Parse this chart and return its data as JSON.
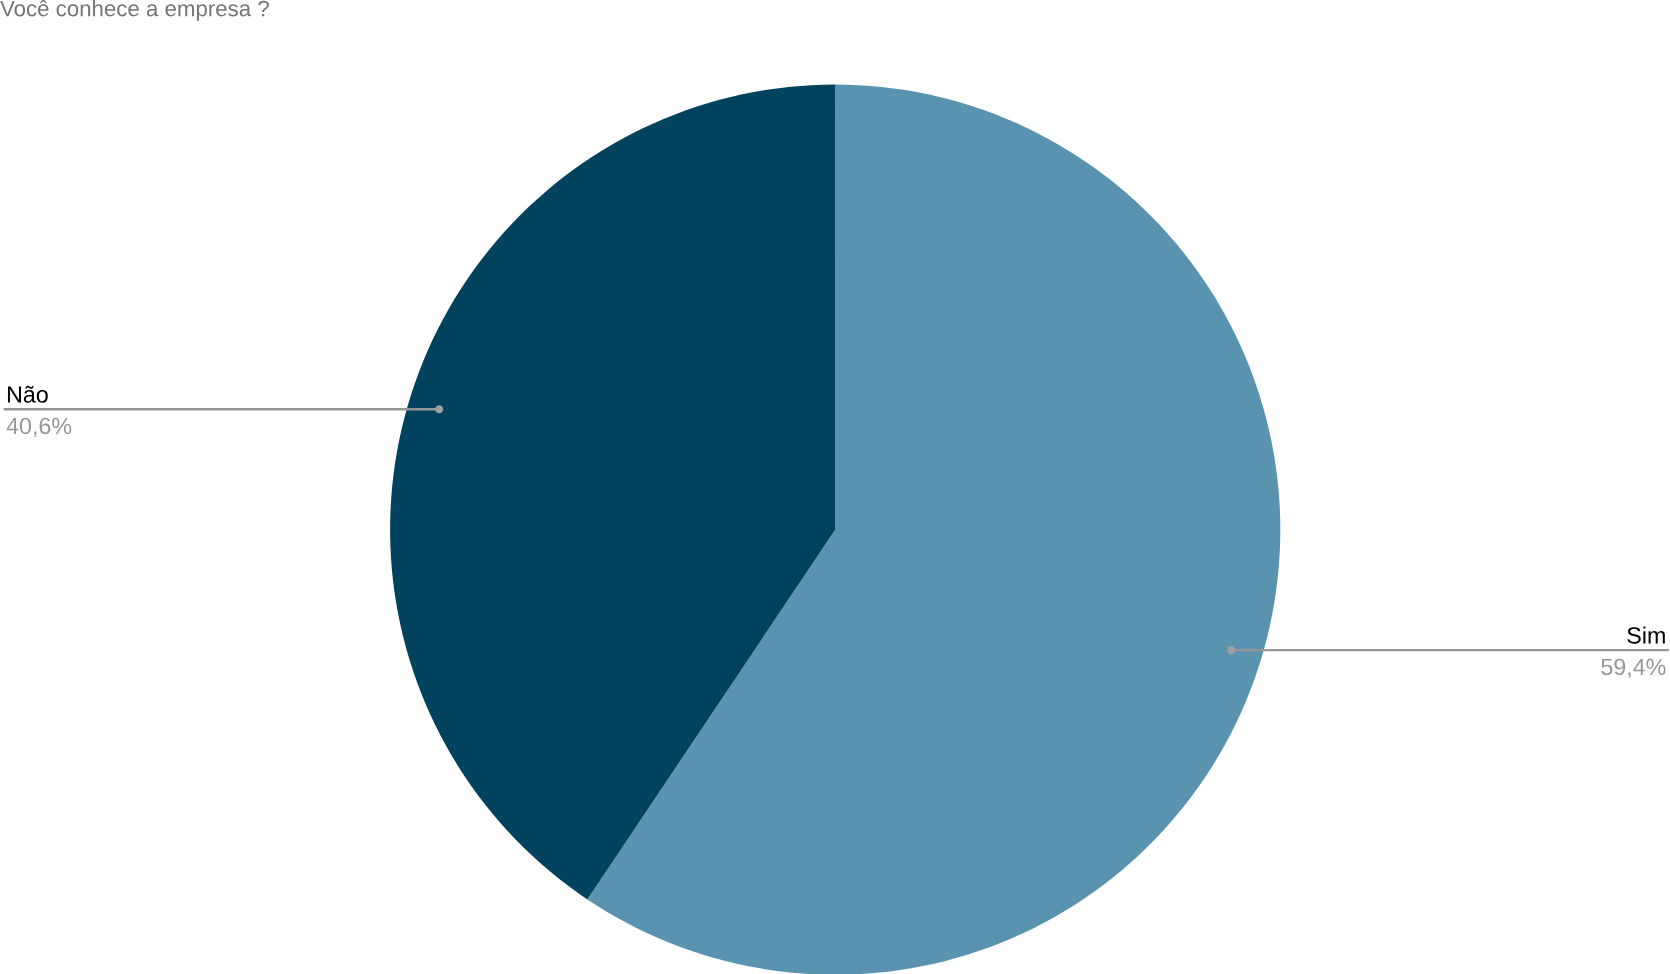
{
  "chart_data": {
    "type": "pie",
    "title": "Você conhece a empresa ?",
    "categories": [
      "Sim",
      "Não"
    ],
    "values": [
      59.4,
      40.6
    ],
    "colors": [
      "#5a93b0",
      "#01435e"
    ],
    "value_labels": [
      "59,4%",
      "40,6%"
    ]
  }
}
